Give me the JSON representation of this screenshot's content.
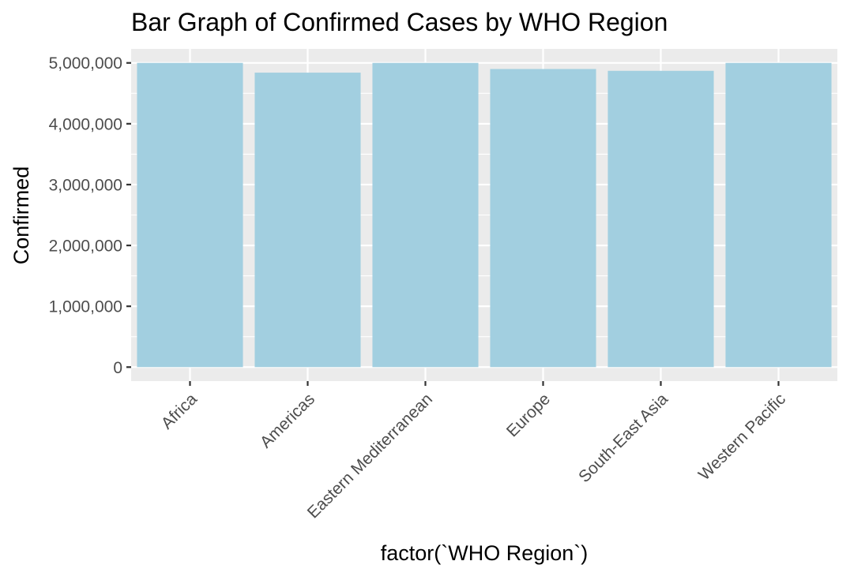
{
  "chart_data": {
    "type": "bar",
    "title": "Bar Graph of Confirmed Cases by WHO Region",
    "xlabel": "factor(`WHO Region`)",
    "ylabel": "Confirmed",
    "categories": [
      "Africa",
      "Americas",
      "Eastern Mediterranean",
      "Europe",
      "South-East Asia",
      "Western Pacific"
    ],
    "values": [
      5000000,
      4840000,
      5000000,
      4900000,
      4870000,
      5000000
    ],
    "ylim": [
      -230000,
      5230000
    ],
    "yticks": [
      0,
      1000000,
      2000000,
      3000000,
      4000000,
      5000000
    ],
    "ytick_labels": [
      "0",
      "1,000,000",
      "2,000,000",
      "3,000,000",
      "4,000,000",
      "5,000,000"
    ],
    "grid": true,
    "legend": "none",
    "bar_color": "#a2cfe0",
    "panel_color": "#ebebeb",
    "grid_color": "#ffffff"
  }
}
